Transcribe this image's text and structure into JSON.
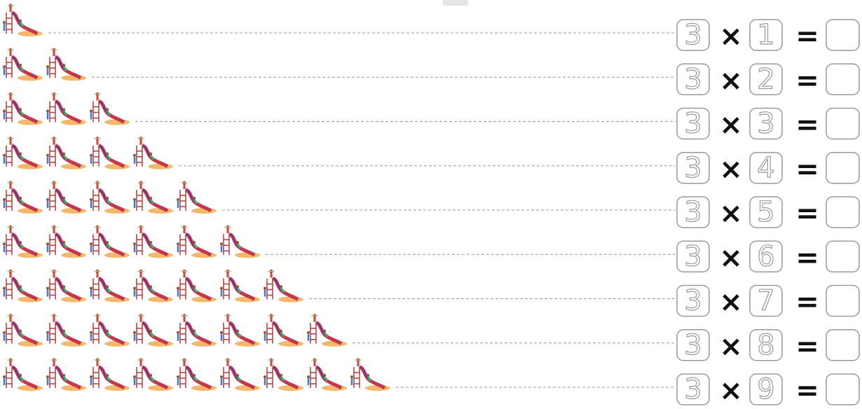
{
  "rows": [
    {
      "multiplicand": 3,
      "operator": "×",
      "multiplier": 1,
      "equals": "="
    },
    {
      "multiplicand": 3,
      "operator": "×",
      "multiplier": 2,
      "equals": "="
    },
    {
      "multiplicand": 3,
      "operator": "×",
      "multiplier": 3,
      "equals": "="
    },
    {
      "multiplicand": 3,
      "operator": "×",
      "multiplier": 4,
      "equals": "="
    },
    {
      "multiplicand": 3,
      "operator": "×",
      "multiplier": 5,
      "equals": "="
    },
    {
      "multiplicand": 3,
      "operator": "×",
      "multiplier": 6,
      "equals": "="
    },
    {
      "multiplicand": 3,
      "operator": "×",
      "multiplier": 7,
      "equals": "="
    },
    {
      "multiplicand": 3,
      "operator": "×",
      "multiplier": 8,
      "equals": "="
    },
    {
      "multiplicand": 3,
      "operator": "×",
      "multiplier": 9,
      "equals": "="
    }
  ]
}
